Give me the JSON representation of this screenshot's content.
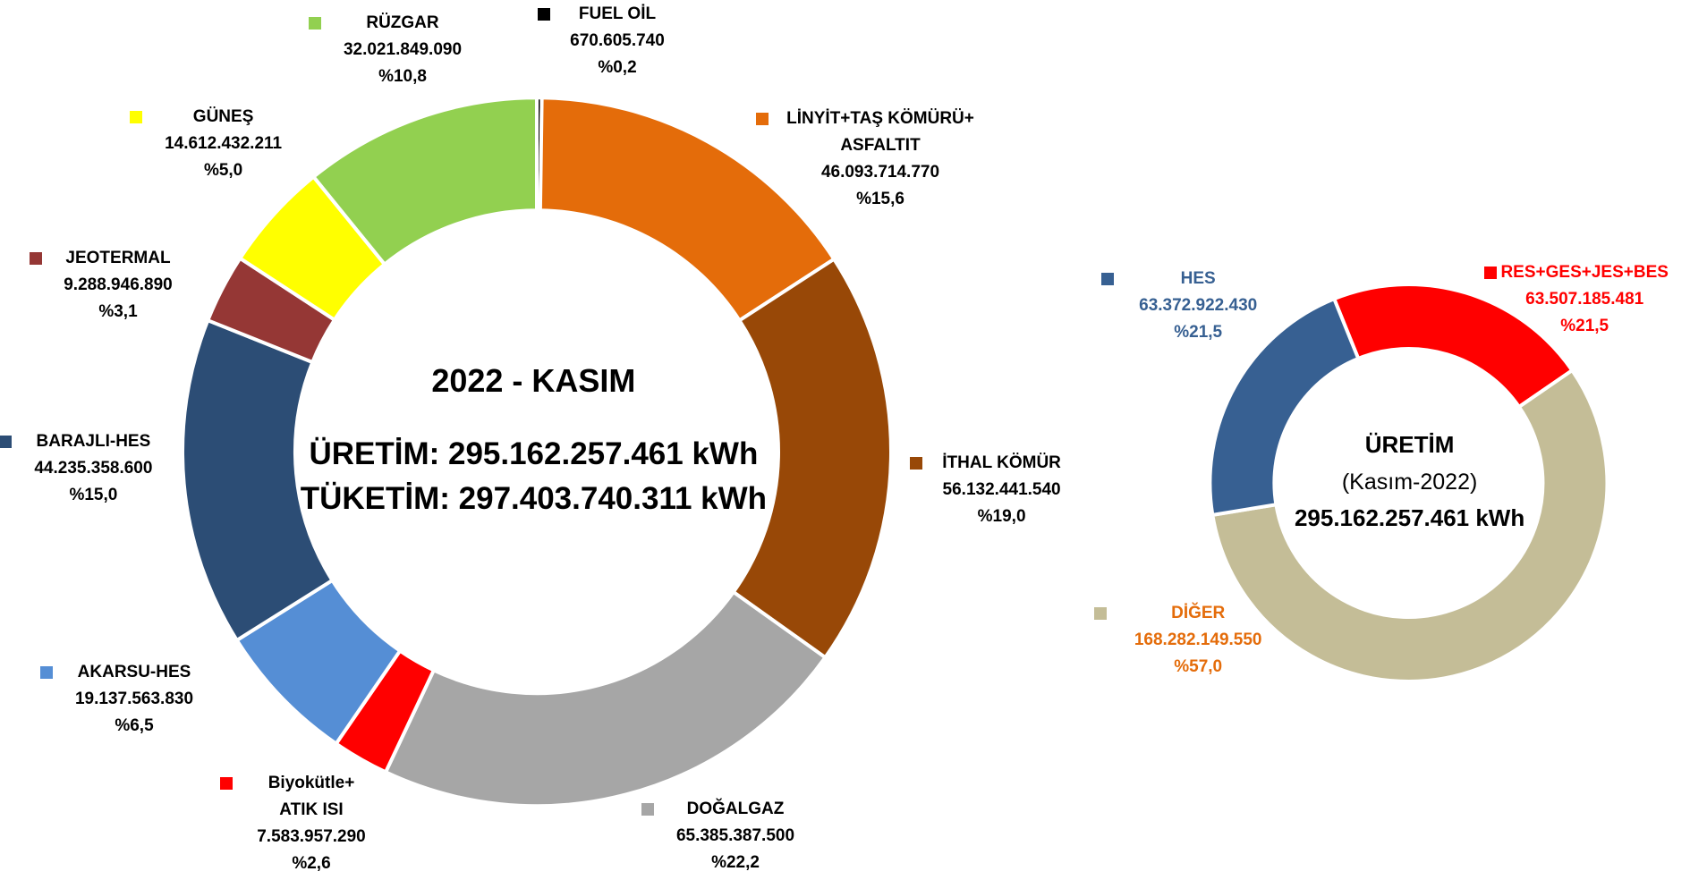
{
  "chart_data": [
    {
      "type": "donut",
      "center_texts": [
        "2022 - KASIM",
        "ÜRETİM:  295.162.257.461 kWh",
        "TÜKETİM:  297.403.740.311 kWh"
      ],
      "categories": [
        "FUEL OİL",
        "LİNYİT+TAŞ KÖMÜRÜ+\nASFALTIT",
        "İTHAL KÖMÜR",
        "DOĞALGAZ",
        "Biyokütle+\nATIK ISI",
        "AKARSU-HES",
        "BARAJLI-HES",
        "JEOTERMAL",
        "GÜNEŞ",
        "RÜZGAR"
      ],
      "values": [
        670605740,
        46093714770,
        56132441540,
        65385387500,
        7583957290,
        19137563830,
        44235358600,
        9288946890,
        14612432211,
        32021849090
      ],
      "value_labels": [
        "670.605.740",
        "46.093.714.770",
        "56.132.441.540",
        "65.385.387.500",
        "7.583.957.290",
        "19.137.563.830",
        "44.235.358.600",
        "9.288.946.890",
        "14.612.432.211",
        "32.021.849.090"
      ],
      "percent_labels": [
        "%0,2",
        "%15,6",
        "%19,0",
        "%22,2",
        "%2,6",
        "%6,5",
        "%15,0",
        "%3,1",
        "%5,0",
        "%10,8"
      ],
      "colors": [
        "#000000",
        "#e46c0a",
        "#984807",
        "#a6a6a6",
        "#ff0000",
        "#558ed5",
        "#2c4d75",
        "#953735",
        "#ffff00",
        "#92d050"
      ]
    },
    {
      "type": "donut",
      "center_texts": [
        "ÜRETİM",
        "(Kasım-2022)",
        "295.162.257.461 kWh"
      ],
      "categories": [
        "RES+GES+JES+BES",
        "DİĞER",
        "HES"
      ],
      "values": [
        63507185481,
        168282149550,
        63372922430
      ],
      "value_labels": [
        "63.507.185.481",
        "168.282.149.550",
        "63.372.922.430"
      ],
      "percent_labels": [
        "%21,5",
        "%57,0",
        "%21,5"
      ],
      "colors": [
        "#ff0000",
        "#c4bd97",
        "#376092"
      ],
      "label_colors": [
        "#ff0000",
        "#e46c0a",
        "#376092"
      ]
    }
  ]
}
